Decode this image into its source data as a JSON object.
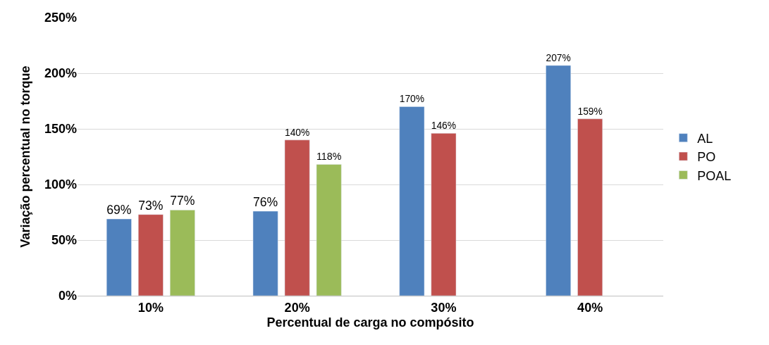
{
  "chart_data": {
    "type": "bar",
    "xlabel": "Percentual de carga no compósito",
    "ylabel": "Variação percentual no torque",
    "categories": [
      "10%",
      "20%",
      "30%",
      "40%"
    ],
    "series": [
      {
        "name": "AL",
        "color": "#4f81bd",
        "values": [
          69,
          76,
          170,
          207
        ],
        "value_labels": [
          "69%",
          "76%",
          "170%",
          "207%"
        ]
      },
      {
        "name": "PO",
        "color": "#c0504d",
        "values": [
          73,
          140,
          146,
          159
        ],
        "value_labels": [
          "73%",
          "140%",
          "146%",
          "159%"
        ]
      },
      {
        "name": "POAL",
        "color": "#9bbb59",
        "values": [
          77,
          118,
          null,
          null
        ],
        "value_labels": [
          "77%",
          "118%",
          null,
          null
        ]
      }
    ],
    "ylim": [
      0,
      250
    ],
    "yticks": [
      {
        "value": 0,
        "label": "0%"
      },
      {
        "value": 50,
        "label": "50%"
      },
      {
        "value": 100,
        "label": "100%"
      },
      {
        "value": 150,
        "label": "150%"
      },
      {
        "value": 200,
        "label": "200%"
      },
      {
        "value": 250,
        "label": "250%"
      }
    ],
    "grid": "y",
    "legend": "right"
  }
}
